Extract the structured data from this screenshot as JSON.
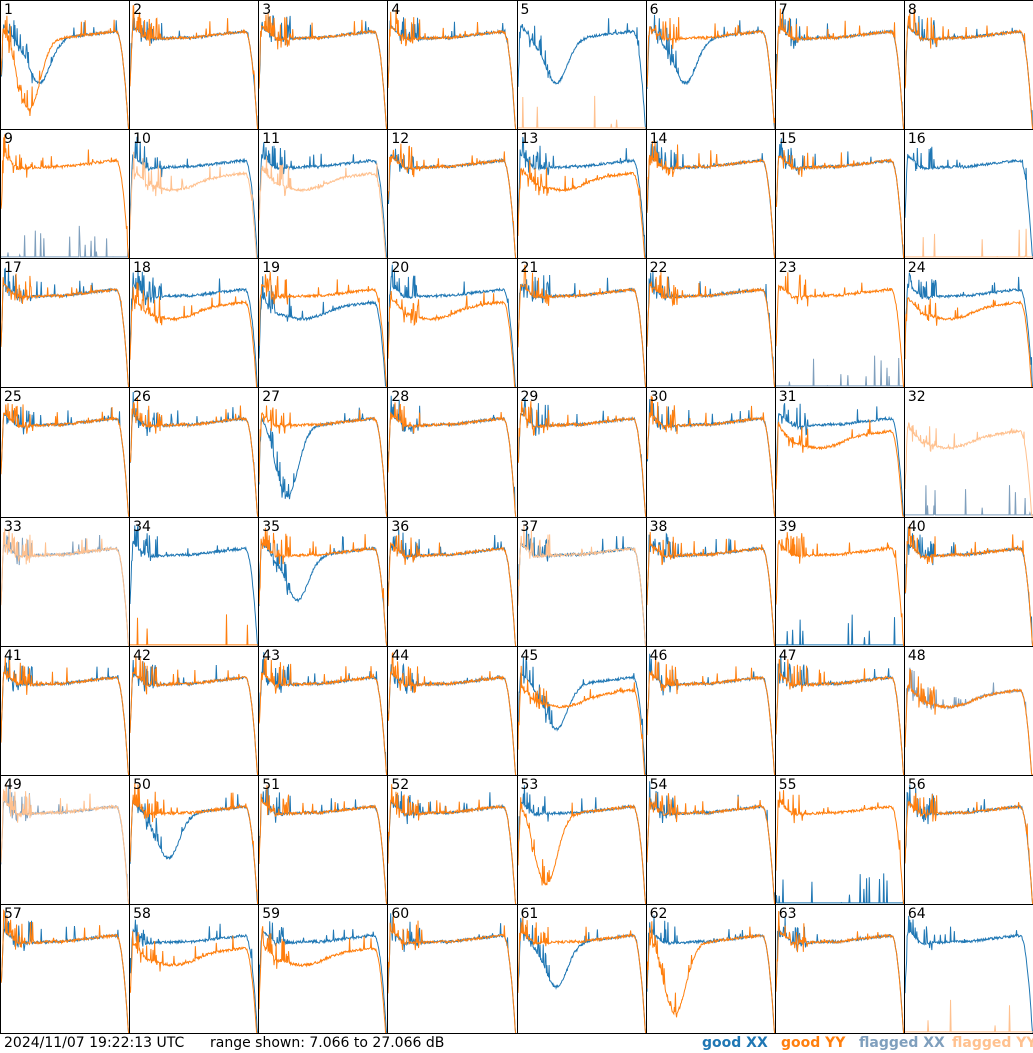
{
  "footer": {
    "timestamp": "2024/11/07 19:22:13 UTC",
    "range": "range shown: 7.066 to 27.066 dB"
  },
  "legend": {
    "good_xx": "good XX",
    "good_yy": "good YY",
    "flagged_xx": "flagged XX",
    "flagged_yy": "flagged YY"
  },
  "colors": {
    "good_xx": "#1f77b4",
    "good_yy": "#ff7f0e",
    "flagged_xx": "#7f9fbd",
    "flagged_yy": "#ffc18f"
  },
  "chart_data": {
    "type": "line",
    "grid_layout": "8x8",
    "xlabel": "",
    "ylabel": "",
    "y_range_db": [
      7.066,
      27.066
    ],
    "panels": [
      {
        "label": "1",
        "xx": "good",
        "yy": "good",
        "xx_shape": "dip",
        "yy_shape": "deep-dip"
      },
      {
        "label": "2",
        "xx": "good",
        "yy": "good",
        "xx_shape": "normal",
        "yy_shape": "normal"
      },
      {
        "label": "3",
        "xx": "good",
        "yy": "good",
        "xx_shape": "normal",
        "yy_shape": "normal"
      },
      {
        "label": "4",
        "xx": "good",
        "yy": "good",
        "xx_shape": "normal",
        "yy_shape": "normal"
      },
      {
        "label": "5",
        "xx": "good",
        "yy": "flagged",
        "xx_shape": "dip",
        "yy_shape": "dead"
      },
      {
        "label": "6",
        "xx": "good",
        "yy": "good",
        "xx_shape": "dip",
        "yy_shape": "normal"
      },
      {
        "label": "7",
        "xx": "good",
        "yy": "good",
        "xx_shape": "normal",
        "yy_shape": "normal"
      },
      {
        "label": "8",
        "xx": "good",
        "yy": "good",
        "xx_shape": "normal",
        "yy_shape": "normal"
      },
      {
        "label": "9",
        "xx": "flagged",
        "yy": "good",
        "xx_shape": "dead",
        "yy_shape": "normal"
      },
      {
        "label": "10",
        "xx": "good",
        "yy": "flagged",
        "xx_shape": "normal",
        "yy_shape": "low"
      },
      {
        "label": "11",
        "xx": "good",
        "yy": "flagged",
        "xx_shape": "normal",
        "yy_shape": "low"
      },
      {
        "label": "12",
        "xx": "good",
        "yy": "good",
        "xx_shape": "normal",
        "yy_shape": "normal"
      },
      {
        "label": "13",
        "xx": "good",
        "yy": "good",
        "xx_shape": "normal",
        "yy_shape": "low"
      },
      {
        "label": "14",
        "xx": "good",
        "yy": "good",
        "xx_shape": "normal",
        "yy_shape": "normal"
      },
      {
        "label": "15",
        "xx": "good",
        "yy": "good",
        "xx_shape": "normal",
        "yy_shape": "normal"
      },
      {
        "label": "16",
        "xx": "good",
        "yy": "flagged",
        "xx_shape": "normal",
        "yy_shape": "dead"
      },
      {
        "label": "17",
        "xx": "good",
        "yy": "good",
        "xx_shape": "normal",
        "yy_shape": "normal"
      },
      {
        "label": "18",
        "xx": "good",
        "yy": "good",
        "xx_shape": "normal",
        "yy_shape": "low"
      },
      {
        "label": "19",
        "xx": "good",
        "yy": "good",
        "xx_shape": "low",
        "yy_shape": "normal"
      },
      {
        "label": "20",
        "xx": "good",
        "yy": "good",
        "xx_shape": "normal",
        "yy_shape": "low"
      },
      {
        "label": "21",
        "xx": "good",
        "yy": "good",
        "xx_shape": "normal",
        "yy_shape": "normal"
      },
      {
        "label": "22",
        "xx": "good",
        "yy": "good",
        "xx_shape": "normal",
        "yy_shape": "normal"
      },
      {
        "label": "23",
        "xx": "flagged",
        "yy": "good",
        "xx_shape": "dead",
        "yy_shape": "normal"
      },
      {
        "label": "24",
        "xx": "good",
        "yy": "good",
        "xx_shape": "normal",
        "yy_shape": "low"
      },
      {
        "label": "25",
        "xx": "good",
        "yy": "good",
        "xx_shape": "normal",
        "yy_shape": "normal"
      },
      {
        "label": "26",
        "xx": "good",
        "yy": "good",
        "xx_shape": "normal",
        "yy_shape": "normal"
      },
      {
        "label": "27",
        "xx": "good",
        "yy": "good",
        "xx_shape": "deep-dip",
        "yy_shape": "normal"
      },
      {
        "label": "28",
        "xx": "good",
        "yy": "good",
        "xx_shape": "normal",
        "yy_shape": "normal"
      },
      {
        "label": "29",
        "xx": "good",
        "yy": "good",
        "xx_shape": "normal",
        "yy_shape": "normal"
      },
      {
        "label": "30",
        "xx": "good",
        "yy": "good",
        "xx_shape": "normal",
        "yy_shape": "normal"
      },
      {
        "label": "31",
        "xx": "good",
        "yy": "good",
        "xx_shape": "normal",
        "yy_shape": "low"
      },
      {
        "label": "32",
        "xx": "flagged",
        "yy": "flagged",
        "xx_shape": "dead",
        "yy_shape": "low"
      },
      {
        "label": "33",
        "xx": "flagged",
        "yy": "flagged",
        "xx_shape": "normal",
        "yy_shape": "normal"
      },
      {
        "label": "34",
        "xx": "good",
        "yy": "good",
        "xx_shape": "normal",
        "yy_shape": "dead"
      },
      {
        "label": "35",
        "xx": "good",
        "yy": "good",
        "xx_shape": "dip",
        "yy_shape": "normal"
      },
      {
        "label": "36",
        "xx": "good",
        "yy": "good",
        "xx_shape": "normal",
        "yy_shape": "normal"
      },
      {
        "label": "37",
        "xx": "good",
        "yy": "flagged",
        "xx_shape": "normal",
        "yy_shape": "normal"
      },
      {
        "label": "38",
        "xx": "good",
        "yy": "good",
        "xx_shape": "normal",
        "yy_shape": "normal"
      },
      {
        "label": "39",
        "xx": "good",
        "yy": "good",
        "xx_shape": "dead",
        "yy_shape": "normal"
      },
      {
        "label": "40",
        "xx": "good",
        "yy": "good",
        "xx_shape": "normal",
        "yy_shape": "normal"
      },
      {
        "label": "41",
        "xx": "good",
        "yy": "good",
        "xx_shape": "normal",
        "yy_shape": "normal"
      },
      {
        "label": "42",
        "xx": "good",
        "yy": "good",
        "xx_shape": "normal",
        "yy_shape": "normal"
      },
      {
        "label": "43",
        "xx": "good",
        "yy": "good",
        "xx_shape": "normal",
        "yy_shape": "normal"
      },
      {
        "label": "44",
        "xx": "good",
        "yy": "good",
        "xx_shape": "normal",
        "yy_shape": "normal"
      },
      {
        "label": "45",
        "xx": "good",
        "yy": "good",
        "xx_shape": "dip",
        "yy_shape": "low"
      },
      {
        "label": "46",
        "xx": "good",
        "yy": "good",
        "xx_shape": "normal",
        "yy_shape": "normal"
      },
      {
        "label": "47",
        "xx": "good",
        "yy": "good",
        "xx_shape": "normal",
        "yy_shape": "normal"
      },
      {
        "label": "48",
        "xx": "flagged",
        "yy": "good",
        "xx_shape": "low",
        "yy_shape": "low"
      },
      {
        "label": "49",
        "xx": "flagged",
        "yy": "flagged",
        "xx_shape": "normal",
        "yy_shape": "normal"
      },
      {
        "label": "50",
        "xx": "good",
        "yy": "good",
        "xx_shape": "dip",
        "yy_shape": "normal"
      },
      {
        "label": "51",
        "xx": "good",
        "yy": "good",
        "xx_shape": "normal",
        "yy_shape": "normal"
      },
      {
        "label": "52",
        "xx": "good",
        "yy": "good",
        "xx_shape": "normal",
        "yy_shape": "normal"
      },
      {
        "label": "53",
        "xx": "good",
        "yy": "good",
        "xx_shape": "normal",
        "yy_shape": "deep-dip"
      },
      {
        "label": "54",
        "xx": "good",
        "yy": "good",
        "xx_shape": "normal",
        "yy_shape": "normal"
      },
      {
        "label": "55",
        "xx": "good",
        "yy": "good",
        "xx_shape": "dead",
        "yy_shape": "normal"
      },
      {
        "label": "56",
        "xx": "good",
        "yy": "good",
        "xx_shape": "normal",
        "yy_shape": "normal"
      },
      {
        "label": "57",
        "xx": "good",
        "yy": "good",
        "xx_shape": "normal",
        "yy_shape": "normal"
      },
      {
        "label": "58",
        "xx": "good",
        "yy": "good",
        "xx_shape": "normal",
        "yy_shape": "low"
      },
      {
        "label": "59",
        "xx": "good",
        "yy": "good",
        "xx_shape": "normal",
        "yy_shape": "low"
      },
      {
        "label": "60",
        "xx": "good",
        "yy": "good",
        "xx_shape": "normal",
        "yy_shape": "normal"
      },
      {
        "label": "61",
        "xx": "good",
        "yy": "good",
        "xx_shape": "dip",
        "yy_shape": "normal"
      },
      {
        "label": "62",
        "xx": "good",
        "yy": "good",
        "xx_shape": "normal",
        "yy_shape": "deep-dip"
      },
      {
        "label": "63",
        "xx": "good",
        "yy": "good",
        "xx_shape": "normal",
        "yy_shape": "normal"
      },
      {
        "label": "64",
        "xx": "good",
        "yy": "flagged",
        "xx_shape": "normal",
        "yy_shape": "dead"
      }
    ]
  }
}
